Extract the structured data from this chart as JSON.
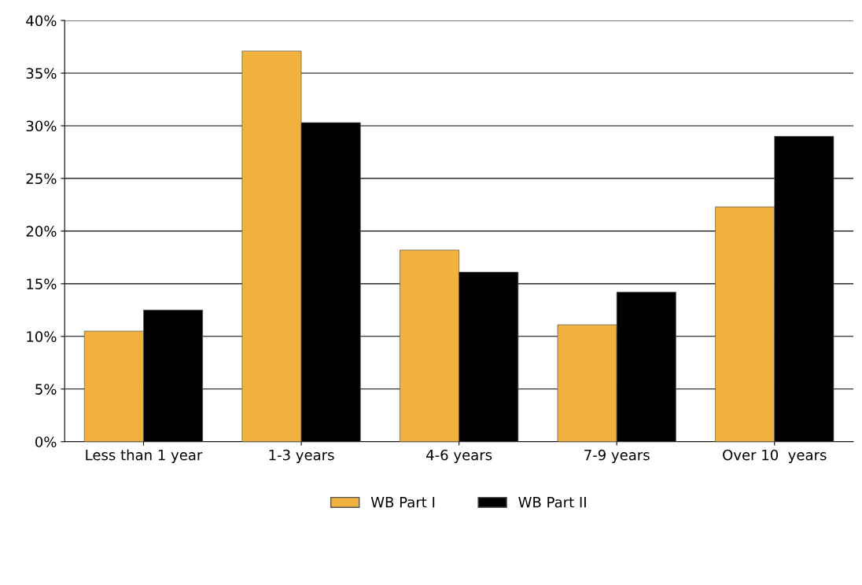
{
  "chart_data": {
    "type": "bar",
    "categories": [
      "Less than 1 year",
      "1-3 years",
      "4-6 years",
      "7-9 years",
      "Over 10  years"
    ],
    "series": [
      {
        "name": "WB Part I",
        "color": "#f0b13f",
        "values": [
          10.5,
          37.1,
          18.2,
          11.1,
          22.3
        ]
      },
      {
        "name": "WB Part II",
        "color": "#000000",
        "values": [
          12.5,
          30.3,
          16.1,
          14.2,
          29.0
        ]
      }
    ],
    "ylim": [
      0,
      40
    ],
    "yticks": [
      {
        "value": 0,
        "label": "0%"
      },
      {
        "value": 5,
        "label": "5%"
      },
      {
        "value": 10,
        "label": "10%"
      },
      {
        "value": 15,
        "label": "15%"
      },
      {
        "value": 20,
        "label": "20%"
      },
      {
        "value": 25,
        "label": "25%"
      },
      {
        "value": 30,
        "label": "30%"
      },
      {
        "value": 35,
        "label": "35%"
      },
      {
        "value": 40,
        "label": "40%"
      }
    ],
    "grid": "y",
    "legend": "bottom"
  }
}
